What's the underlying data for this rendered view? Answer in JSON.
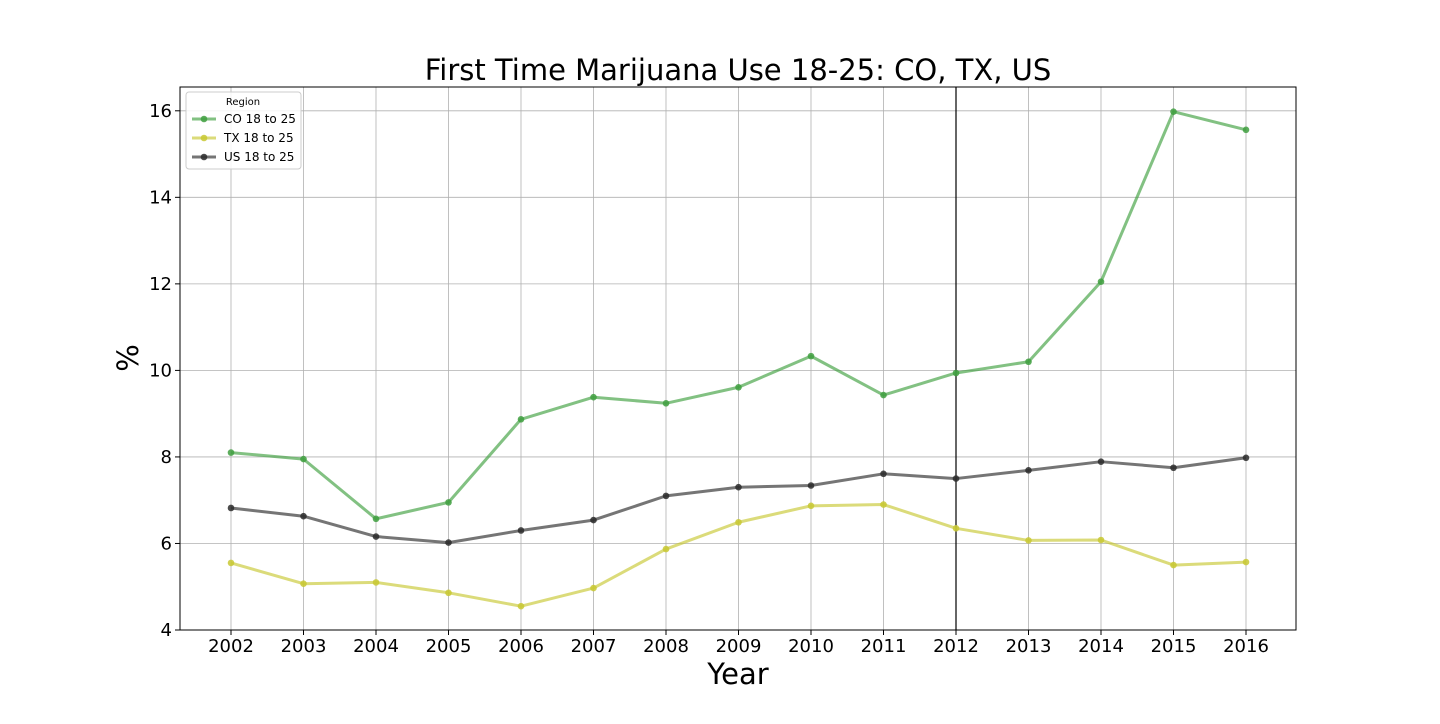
{
  "chart_data": {
    "type": "line",
    "title": "First Time Marijuana Use 18-25: CO, TX, US",
    "xlabel": "Year",
    "ylabel": "%",
    "categories": [
      "2002",
      "2003",
      "2004",
      "2005",
      "2006",
      "2007",
      "2008",
      "2009",
      "2010",
      "2011",
      "2012",
      "2013",
      "2014",
      "2015",
      "2016"
    ],
    "ylim": [
      4,
      16.55
    ],
    "yticks": [
      "4",
      "6",
      "8",
      "10",
      "12",
      "14",
      "16"
    ],
    "grid": true,
    "legend": {
      "title": "Region",
      "placement": "top-left"
    },
    "vertical_line_at": "2012",
    "series": [
      {
        "name": "CO 18 to 25",
        "color": "#3f9f3f",
        "values": [
          8.1,
          7.95,
          6.57,
          6.95,
          8.87,
          9.38,
          9.24,
          9.61,
          10.33,
          9.43,
          9.94,
          10.2,
          12.05,
          15.98,
          15.56
        ]
      },
      {
        "name": "TX 18 to 25",
        "color": "#c8c832",
        "values": [
          5.55,
          5.07,
          5.1,
          4.86,
          4.55,
          4.97,
          5.87,
          6.49,
          6.87,
          6.9,
          6.35,
          6.07,
          6.08,
          5.5,
          5.57
        ]
      },
      {
        "name": "US 18 to 25",
        "color": "#2b2b2b",
        "values": [
          6.82,
          6.63,
          6.16,
          6.02,
          6.3,
          6.54,
          7.1,
          7.3,
          7.34,
          7.61,
          7.5,
          7.69,
          7.89,
          7.75,
          7.98
        ]
      }
    ]
  }
}
